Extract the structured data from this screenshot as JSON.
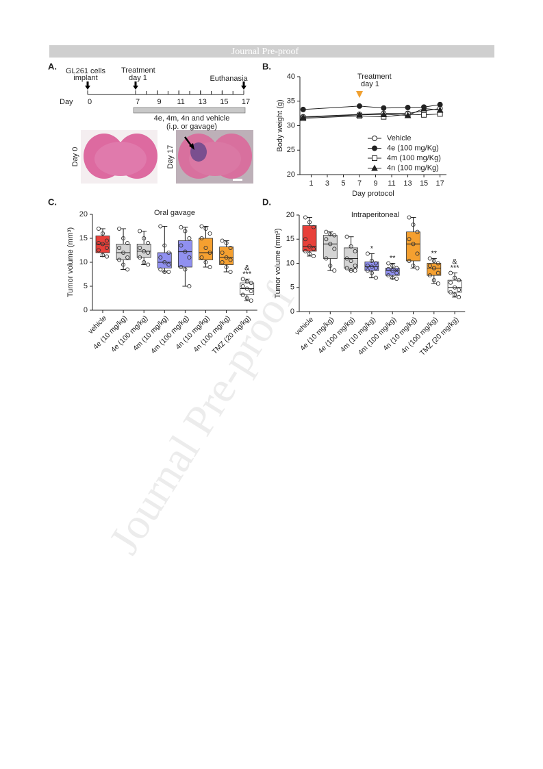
{
  "header": {
    "title": "Journal Pre-proof"
  },
  "watermark": "Journal Pre-proof",
  "figure_a": {
    "panel": "A.",
    "implant_label": [
      "GL261 cells",
      "implant"
    ],
    "treatment_label": [
      "Treatment",
      "day 1"
    ],
    "euthanasia_label": "Euthanasia",
    "day_label": "Day",
    "ticks": [
      0,
      7,
      9,
      11,
      13,
      15,
      17
    ],
    "bar_text": [
      "4e, 4m, 4n and vehicle",
      "(i.p. or gavage)"
    ],
    "image_labels": [
      "Day 0",
      "Day 17"
    ]
  },
  "chart_data": [
    {
      "type": "line",
      "panel": "B.",
      "x_label": "Day protocol",
      "y_label": "Body weight (g)",
      "x": [
        0,
        7,
        10,
        13,
        15,
        17
      ],
      "series": [
        {
          "name": "Vehicle",
          "marker": "open-circle",
          "color": "#222222",
          "values": [
            31.8,
            32.3,
            32.5,
            32.5,
            33.0,
            33.5
          ]
        },
        {
          "name": "4e (100 mg/Kg)",
          "marker": "filled-circle",
          "color": "#222222",
          "values": [
            33.3,
            34.0,
            33.6,
            33.7,
            33.8,
            34.3
          ]
        },
        {
          "name": "4m (100 mg/Kg)",
          "marker": "open-square",
          "color": "#222222",
          "values": [
            31.5,
            32.0,
            31.8,
            32.3,
            32.2,
            32.4
          ]
        },
        {
          "name": "4n (100 mg/Kg)",
          "marker": "filled-triangle",
          "color": "#222222",
          "values": [
            31.7,
            32.2,
            32.3,
            32.1,
            33.5,
            33.2
          ]
        }
      ],
      "annotation": {
        "text": [
          "Treatment",
          "day 1"
        ],
        "x": 7,
        "color": "#f0a030"
      },
      "xlim": [
        -0.4,
        17.8
      ],
      "xticks": [
        1,
        3,
        5,
        7,
        9,
        11,
        13,
        15,
        17
      ],
      "ylim": [
        20,
        40
      ],
      "yticks": [
        20,
        25,
        30,
        35,
        40
      ],
      "legend": "lower right"
    },
    {
      "type": "box",
      "panel": "C.",
      "title": "Oral gavage",
      "y_label": "Tumor volume (mm³)",
      "categories": [
        "vehicle",
        "4e (10 mg/kg)",
        "4e (100 mg/kg)",
        "4m (10 mg/kg)",
        "4m (100 mg/kg)",
        "4n (10 mg/kg)",
        "4n (100 mg/kg)",
        "TMZ (20 mg/kg)"
      ],
      "boxes": [
        {
          "color": "#e8403a",
          "min": 11.2,
          "q1": 12,
          "median": 13.8,
          "q3": 15.5,
          "max": 17,
          "points": [
            17,
            16,
            14.5,
            14,
            13.8,
            13,
            12.5,
            11.5,
            11.2
          ]
        },
        {
          "color": "#d4d4d4",
          "min": 8.5,
          "q1": 10.5,
          "median": 12,
          "q3": 13.8,
          "max": 17,
          "points": [
            17,
            15,
            14,
            13,
            12,
            11,
            10.5,
            9.5,
            8.5
          ]
        },
        {
          "color": "#d4d4d4",
          "min": 9.5,
          "q1": 11,
          "median": 12.3,
          "q3": 13.8,
          "max": 16.5,
          "points": [
            16.5,
            15,
            14,
            13,
            12.3,
            12,
            11,
            10,
            9.5
          ]
        },
        {
          "color": "#9090f0",
          "min": 8,
          "q1": 8.8,
          "median": 10,
          "q3": 12,
          "max": 17.5,
          "points": [
            17.5,
            13.5,
            12,
            11,
            10,
            9.5,
            8.5,
            8,
            8
          ]
        },
        {
          "color": "#9090f0",
          "min": 5,
          "q1": 9,
          "median": 12.2,
          "q3": 14.5,
          "max": 17.3,
          "points": [
            17.3,
            16.5,
            15,
            13.5,
            12.2,
            11,
            9,
            8.5,
            5
          ]
        },
        {
          "color": "#f5a030",
          "min": 9,
          "q1": 10.5,
          "median": 12,
          "q3": 15,
          "max": 17.5,
          "points": [
            17.5,
            17,
            16,
            15,
            13,
            12,
            11,
            10,
            9
          ]
        },
        {
          "color": "#f5a030",
          "min": 8,
          "q1": 9.5,
          "median": 11,
          "q3": 13.2,
          "max": 14.5,
          "points": [
            14.5,
            14,
            13,
            12,
            11,
            10.5,
            10,
            9,
            8
          ]
        },
        {
          "color": "#ffffff",
          "min": 2,
          "q1": 3.2,
          "median": 4.5,
          "q3": 5.7,
          "max": 6.5,
          "points": [
            6.5,
            6,
            5.7,
            5,
            4.5,
            4,
            3.2,
            2.5,
            2
          ]
        }
      ],
      "annotations": [
        null,
        null,
        null,
        null,
        null,
        null,
        null,
        [
          "&",
          "***"
        ]
      ],
      "ylim": [
        0,
        20
      ],
      "yticks": [
        0,
        5,
        10,
        15,
        20
      ]
    },
    {
      "type": "box",
      "panel": "D.",
      "title": "Intraperitoneal",
      "y_label": "Tumor volume (mm³)",
      "categories": [
        "vehicle",
        "4e (10 mg/kg)",
        "4e (100 mg/kg)",
        "4m (10 mg/kg)",
        "4m (100 mg/kg)",
        "4n (10 mg/kg)",
        "4n (100 mg/kg)",
        "TMZ (20 mg/kg)"
      ],
      "boxes": [
        {
          "color": "#e8403a",
          "min": 11.5,
          "q1": 12.5,
          "median": 13.5,
          "q3": 17.8,
          "max": 19.5,
          "points": [
            19.5,
            18.5,
            17.5,
            15,
            13.5,
            13,
            12.5,
            12,
            11.5
          ]
        },
        {
          "color": "#d4d4d4",
          "min": 8.5,
          "q1": 11,
          "median": 14,
          "q3": 15.8,
          "max": 16.5,
          "points": [
            16.5,
            16,
            15.8,
            15,
            14,
            13,
            11,
            9.5,
            8.5
          ]
        },
        {
          "color": "#d4d4d4",
          "min": 8.5,
          "q1": 9,
          "median": 11,
          "q3": 13.2,
          "max": 15.5,
          "points": [
            15.5,
            13.5,
            12.5,
            11,
            10.5,
            9.5,
            9,
            8.5,
            8.5
          ]
        },
        {
          "color": "#9090f0",
          "min": 7,
          "q1": 8.5,
          "median": 9.3,
          "q3": 10.3,
          "max": 12,
          "points": [
            12,
            10.5,
            10,
            9.5,
            9.3,
            9,
            8.5,
            8,
            7
          ]
        },
        {
          "color": "#9090f0",
          "min": 6.8,
          "q1": 7.5,
          "median": 8.5,
          "q3": 9,
          "max": 10,
          "points": [
            10,
            9.5,
            9,
            8.8,
            8.5,
            8,
            7.5,
            7,
            6.8
          ]
        },
        {
          "color": "#f5a030",
          "min": 9,
          "q1": 10.5,
          "median": 14,
          "q3": 16.5,
          "max": 19.5,
          "points": [
            19.5,
            18,
            16.5,
            15,
            14,
            12,
            10.5,
            9.5,
            9
          ]
        },
        {
          "color": "#f5a030",
          "min": 5.8,
          "q1": 7.5,
          "median": 9,
          "q3": 10,
          "max": 11,
          "points": [
            11,
            10.5,
            10,
            9.5,
            9,
            8,
            7.5,
            6.5,
            5.8
          ]
        },
        {
          "color": "#ffffff",
          "min": 3,
          "q1": 4,
          "median": 5,
          "q3": 6.5,
          "max": 8,
          "points": [
            8,
            7,
            6.5,
            6,
            5,
            4.5,
            4,
            3.5,
            3
          ]
        }
      ],
      "annotations": [
        null,
        null,
        null,
        [
          "*"
        ],
        [
          "**"
        ],
        null,
        [
          "**"
        ],
        [
          "&",
          "***"
        ]
      ],
      "ylim": [
        0,
        20
      ],
      "yticks": [
        0,
        5,
        10,
        15,
        20
      ]
    }
  ]
}
